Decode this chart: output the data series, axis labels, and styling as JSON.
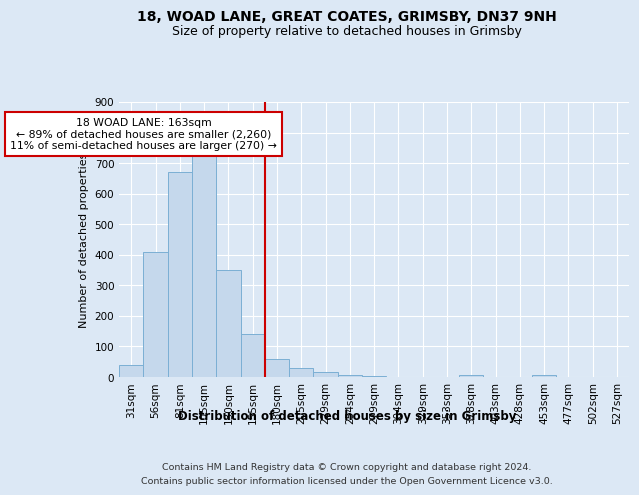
{
  "title": "18, WOAD LANE, GREAT COATES, GRIMSBY, DN37 9NH",
  "subtitle": "Size of property relative to detached houses in Grimsby",
  "xlabel": "Distribution of detached houses by size in Grimsby",
  "ylabel": "Number of detached properties",
  "footnote1": "Contains HM Land Registry data © Crown copyright and database right 2024.",
  "footnote2": "Contains public sector information licensed under the Open Government Licence v3.0.",
  "categories": [
    "31sqm",
    "56sqm",
    "81sqm",
    "105sqm",
    "130sqm",
    "155sqm",
    "180sqm",
    "205sqm",
    "229sqm",
    "254sqm",
    "279sqm",
    "304sqm",
    "329sqm",
    "353sqm",
    "378sqm",
    "403sqm",
    "428sqm",
    "453sqm",
    "477sqm",
    "502sqm",
    "527sqm"
  ],
  "values": [
    40,
    410,
    670,
    750,
    350,
    140,
    60,
    30,
    15,
    5,
    2,
    1,
    0,
    0,
    5,
    0,
    0,
    5,
    0,
    0,
    0
  ],
  "bar_color": "#c5d8ec",
  "bar_edge_color": "#7bafd4",
  "redline_index": 5.5,
  "redline_color": "#cc0000",
  "annotation_text": "18 WOAD LANE: 163sqm\n← 89% of detached houses are smaller (2,260)\n11% of semi-detached houses are larger (270) →",
  "annotation_box_color": "white",
  "annotation_border_color": "#cc0000",
  "ylim": [
    0,
    900
  ],
  "yticks": [
    0,
    100,
    200,
    300,
    400,
    500,
    600,
    700,
    800,
    900
  ],
  "bg_color": "#dce8f5",
  "plot_bg_color": "#dce8f5",
  "title_fontsize": 10,
  "subtitle_fontsize": 9,
  "axis_label_fontsize": 8,
  "tick_fontsize": 7.5,
  "footnote_fontsize": 6.8
}
